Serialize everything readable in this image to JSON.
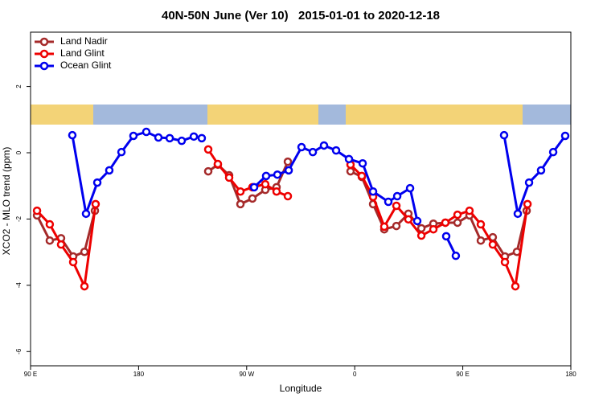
{
  "chart_data": {
    "type": "line",
    "title": "40N-50N June (Ver 10)   2015-01-01 to 2020-12-18",
    "x_label": "Longitude",
    "y_label": "XCO2 - MLO trend (ppm)",
    "xlim": [
      90,
      540
    ],
    "ylim": [
      -6.43,
      3.64
    ],
    "xticks": [
      {
        "value": 90,
        "label": "90 E"
      },
      {
        "value": 180,
        "label": "180"
      },
      {
        "value": 270,
        "label": "90 W"
      },
      {
        "value": 360,
        "label": "0"
      },
      {
        "value": 450,
        "label": "90 E"
      },
      {
        "value": 540,
        "label": "180"
      }
    ],
    "yticks": [
      -6,
      -4,
      -2,
      0,
      2
    ],
    "legend": "top-left",
    "series": [
      {
        "name": "Land Nadir",
        "color": "#a52a2a",
        "x": [
          95.4,
          106,
          115.4,
          125.5,
          134.9,
          143.6,
          null,
          238,
          246,
          255.4,
          264.8,
          274.8,
          285.5,
          294.9,
          304.3,
          null,
          356.5,
          365.9,
          375.3,
          384.6,
          394.7,
          404.7,
          415.5,
          425.5,
          435.5,
          445.6,
          455.6,
          465,
          475,
          485.1,
          495.1,
          503.2
        ],
        "values": [
          -1.89,
          -2.65,
          -2.58,
          -3.13,
          -2.99,
          -1.75,
          null,
          -0.56,
          -0.36,
          -0.68,
          -1.55,
          -1.38,
          -1.12,
          -1.04,
          -0.27,
          null,
          -0.56,
          -0.73,
          -1.55,
          -2.31,
          -2.21,
          -1.84,
          -2.28,
          -2.14,
          -2.11,
          -2.11,
          -1.89,
          -2.65,
          -2.55,
          -3.13,
          -2.99,
          -1.75
        ]
      },
      {
        "name": "Land Glint",
        "color": "#ee0000",
        "x": [
          95.4,
          106,
          115.4,
          125.5,
          134.9,
          144.2,
          null,
          238,
          246,
          255.4,
          264.8,
          274.8,
          285.5,
          294.9,
          304.3,
          null,
          356.5,
          365.9,
          375.3,
          384.6,
          394.7,
          404.7,
          415.5,
          425.5,
          435.5,
          445.6,
          455.6,
          465,
          475,
          485.1,
          493.8,
          503.9
        ],
        "values": [
          -1.75,
          -2.16,
          -2.77,
          -3.3,
          -4.03,
          -1.55,
          null,
          0.1,
          -0.34,
          -0.75,
          -1.17,
          -1.04,
          -0.95,
          -1.17,
          -1.31,
          null,
          -0.36,
          -0.7,
          -1.33,
          -2.23,
          -1.6,
          -2.01,
          -2.5,
          -2.31,
          -2.11,
          -1.87,
          -1.75,
          -2.16,
          -2.77,
          -3.3,
          -4.03,
          -1.55
        ]
      },
      {
        "name": "Ocean Glint",
        "color": "#0000ee",
        "x": [
          124.8,
          136.2,
          145.6,
          155.6,
          165.7,
          175.7,
          186.4,
          196.5,
          205.9,
          215.9,
          226,
          232.6,
          null,
          276.2,
          286.2,
          295.6,
          305,
          315.7,
          325.1,
          334.4,
          344.5,
          355.2,
          366.6,
          375.3,
          388,
          395.4,
          406.1,
          412.1,
          null,
          436.2,
          444.2,
          null,
          484.4,
          495.8,
          505.2,
          515.2,
          525.3,
          535.3
        ],
        "values": [
          0.53,
          -1.84,
          -0.9,
          -0.53,
          0.02,
          0.51,
          0.63,
          0.46,
          0.44,
          0.36,
          0.49,
          0.44,
          null,
          -1.04,
          -0.7,
          -0.66,
          -0.53,
          0.17,
          0.02,
          0.22,
          0.07,
          -0.19,
          -0.32,
          -1.17,
          -1.48,
          -1.31,
          -1.07,
          -2.06,
          null,
          -2.52,
          -3.11,
          null,
          0.53,
          -1.84,
          -0.9,
          -0.53,
          0.02,
          0.51
        ]
      }
    ]
  }
}
